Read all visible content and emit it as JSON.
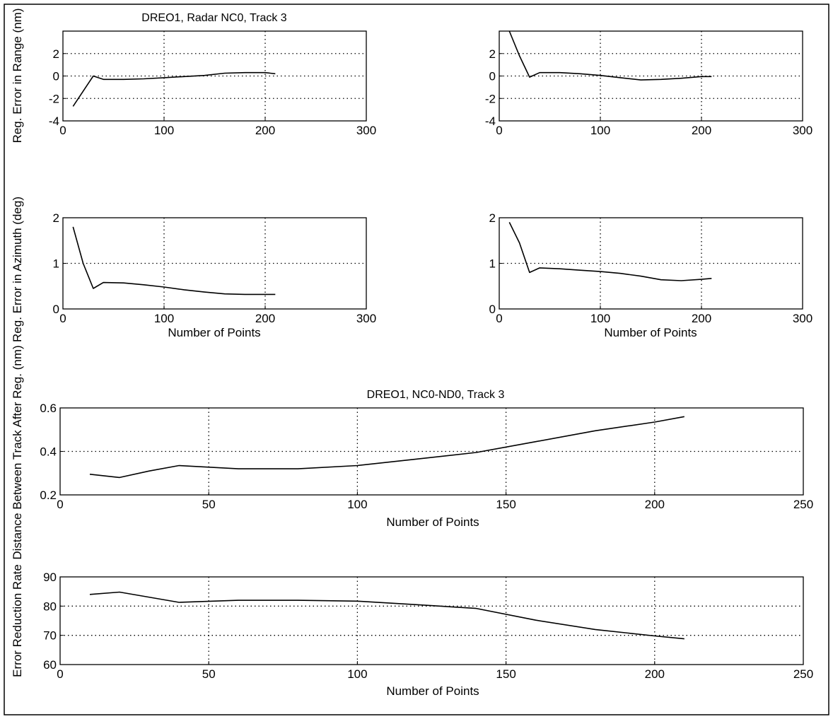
{
  "chart_data": [
    {
      "type": "line",
      "title": "DREO1, Radar NC0, Track 3",
      "xlabel": "",
      "ylabel": "Reg. Error in Range (nm)",
      "xlim": [
        0,
        300
      ],
      "ylim": [
        -4,
        4
      ],
      "xticks": [
        0,
        100,
        200,
        300
      ],
      "yticks": [
        -4,
        -2,
        0,
        2
      ],
      "xtick_labels": [
        "0",
        "100",
        "200",
        "300"
      ],
      "ytick_labels": [
        "-4",
        "-2",
        "0",
        "2"
      ],
      "grid": true,
      "series": [
        {
          "x": [
            10,
            30,
            40,
            60,
            80,
            100,
            120,
            140,
            160,
            180,
            200,
            210
          ],
          "y": [
            -2.7,
            0.0,
            -0.3,
            -0.3,
            -0.25,
            -0.15,
            -0.05,
            0.05,
            0.25,
            0.3,
            0.3,
            0.2
          ]
        }
      ]
    },
    {
      "type": "line",
      "title": "",
      "xlabel": "",
      "ylabel": "",
      "xlim": [
        0,
        300
      ],
      "ylim": [
        -4,
        4
      ],
      "xticks": [
        0,
        100,
        200,
        300
      ],
      "yticks": [
        -4,
        -2,
        0,
        2
      ],
      "xtick_labels": [
        "0",
        "100",
        "200",
        "300"
      ],
      "ytick_labels": [
        "-4",
        "-2",
        "0",
        "2"
      ],
      "grid": true,
      "series": [
        {
          "x": [
            10,
            20,
            30,
            40,
            60,
            80,
            100,
            120,
            140,
            160,
            180,
            200,
            210
          ],
          "y": [
            4.0,
            1.8,
            -0.1,
            0.3,
            0.3,
            0.2,
            0.05,
            -0.15,
            -0.35,
            -0.3,
            -0.2,
            -0.05,
            -0.05
          ]
        }
      ]
    },
    {
      "type": "line",
      "title": "",
      "xlabel": "Number of Points",
      "ylabel": "Reg. Error in Azimuth (deg)",
      "xlim": [
        0,
        300
      ],
      "ylim": [
        0,
        2
      ],
      "xticks": [
        0,
        100,
        200,
        300
      ],
      "yticks": [
        0,
        1,
        2
      ],
      "xtick_labels": [
        "0",
        "100",
        "200",
        "300"
      ],
      "ytick_labels": [
        "0",
        "1",
        "2"
      ],
      "grid": true,
      "series": [
        {
          "x": [
            10,
            20,
            30,
            40,
            60,
            80,
            100,
            120,
            140,
            160,
            180,
            200,
            210
          ],
          "y": [
            1.8,
            1.0,
            0.45,
            0.58,
            0.57,
            0.53,
            0.48,
            0.42,
            0.37,
            0.33,
            0.32,
            0.32,
            0.32
          ]
        }
      ]
    },
    {
      "type": "line",
      "title": "",
      "xlabel": "Number of Points",
      "ylabel": "",
      "xlim": [
        0,
        300
      ],
      "ylim": [
        0,
        2
      ],
      "xticks": [
        0,
        100,
        200,
        300
      ],
      "yticks": [
        0,
        1,
        2
      ],
      "xtick_labels": [
        "0",
        "100",
        "200",
        "300"
      ],
      "ytick_labels": [
        "0",
        "1",
        "2"
      ],
      "grid": true,
      "series": [
        {
          "x": [
            10,
            20,
            30,
            40,
            60,
            80,
            100,
            120,
            140,
            160,
            180,
            200,
            210
          ],
          "y": [
            1.9,
            1.45,
            0.8,
            0.9,
            0.88,
            0.85,
            0.82,
            0.78,
            0.72,
            0.64,
            0.62,
            0.65,
            0.67
          ]
        }
      ]
    },
    {
      "type": "line",
      "title": "DREO1, NC0-ND0, Track 3",
      "xlabel": "Number of Points",
      "ylabel": "Distance Between Track After Reg. (nm)",
      "xlim": [
        0,
        250
      ],
      "ylim": [
        0.2,
        0.6
      ],
      "xticks": [
        0,
        50,
        100,
        150,
        200,
        250
      ],
      "yticks": [
        0.2,
        0.4,
        0.6
      ],
      "xtick_labels": [
        "0",
        "50",
        "100",
        "150",
        "200",
        "250"
      ],
      "ytick_labels": [
        "0.2",
        "0.4",
        "0.6"
      ],
      "grid": true,
      "series": [
        {
          "x": [
            10,
            20,
            30,
            40,
            60,
            80,
            100,
            120,
            140,
            160,
            180,
            200,
            210
          ],
          "y": [
            0.295,
            0.28,
            0.31,
            0.335,
            0.32,
            0.32,
            0.335,
            0.365,
            0.395,
            0.445,
            0.495,
            0.535,
            0.56
          ]
        }
      ]
    },
    {
      "type": "line",
      "title": "",
      "xlabel": "Number of Points",
      "ylabel": "Error Reduction Rate",
      "xlim": [
        0,
        250
      ],
      "ylim": [
        60,
        90
      ],
      "xticks": [
        0,
        50,
        100,
        150,
        200,
        250
      ],
      "yticks": [
        60,
        70,
        80,
        90
      ],
      "xtick_labels": [
        "0",
        "50",
        "100",
        "150",
        "200",
        "250"
      ],
      "ytick_labels": [
        "60",
        "70",
        "80",
        "90"
      ],
      "grid": true,
      "series": [
        {
          "x": [
            10,
            20,
            40,
            60,
            80,
            100,
            120,
            140,
            160,
            180,
            200,
            210
          ],
          "y": [
            84,
            84.8,
            81.3,
            82,
            82,
            81.7,
            80.5,
            79.2,
            75.2,
            72,
            69.8,
            68.8
          ]
        }
      ]
    }
  ]
}
